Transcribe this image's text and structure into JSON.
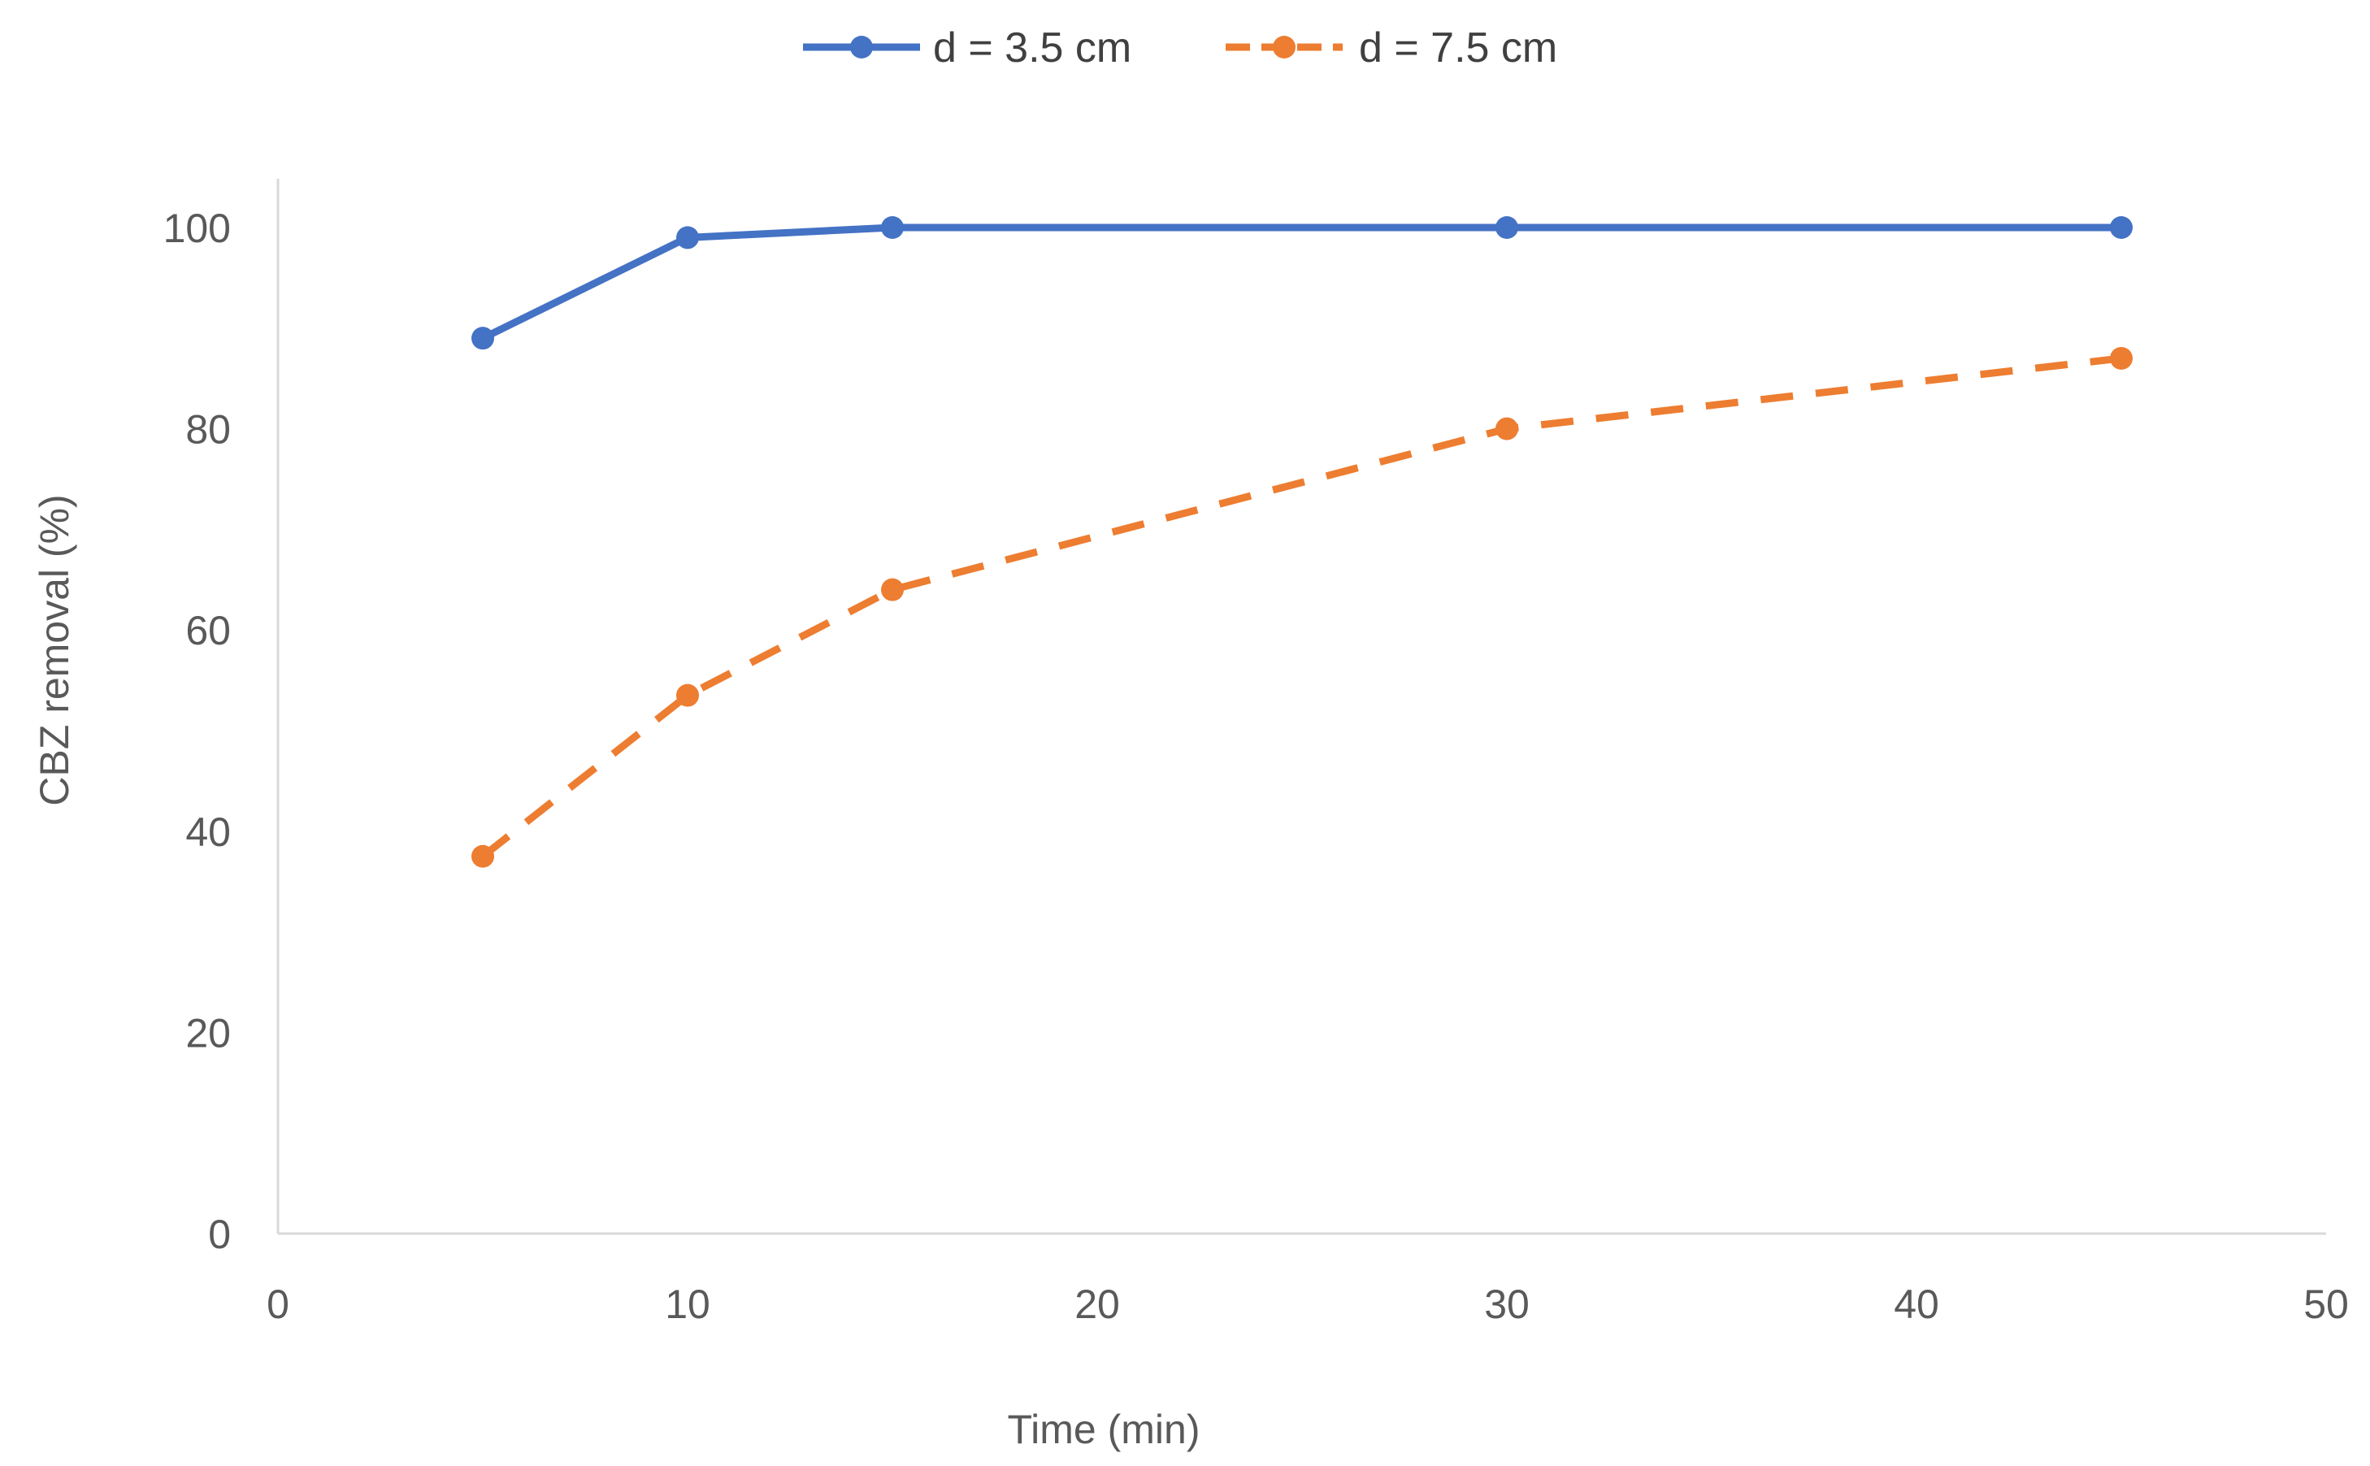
{
  "chart_data": {
    "type": "line",
    "title": "",
    "xlabel": "Time (min)",
    "ylabel": "CBZ removal (%)",
    "xlim": [
      0,
      50
    ],
    "ylim": [
      0,
      100
    ],
    "xticks": [
      0,
      10,
      20,
      30,
      40,
      50
    ],
    "yticks": [
      0,
      20,
      40,
      60,
      80,
      100
    ],
    "grid": false,
    "legend_position": "top-center",
    "series": [
      {
        "name": "d = 3.5 cm",
        "color": "#4472C4",
        "line_style": "solid",
        "marker": "circle",
        "x": [
          5,
          10,
          15,
          30,
          45
        ],
        "y": [
          89,
          99,
          100,
          100,
          100
        ]
      },
      {
        "name": "d = 7.5 cm",
        "color": "#ED7D31",
        "line_style": "dashed",
        "marker": "circle",
        "x": [
          5,
          10,
          15,
          30,
          45
        ],
        "y": [
          37.5,
          53.5,
          64,
          80,
          87
        ]
      }
    ]
  }
}
